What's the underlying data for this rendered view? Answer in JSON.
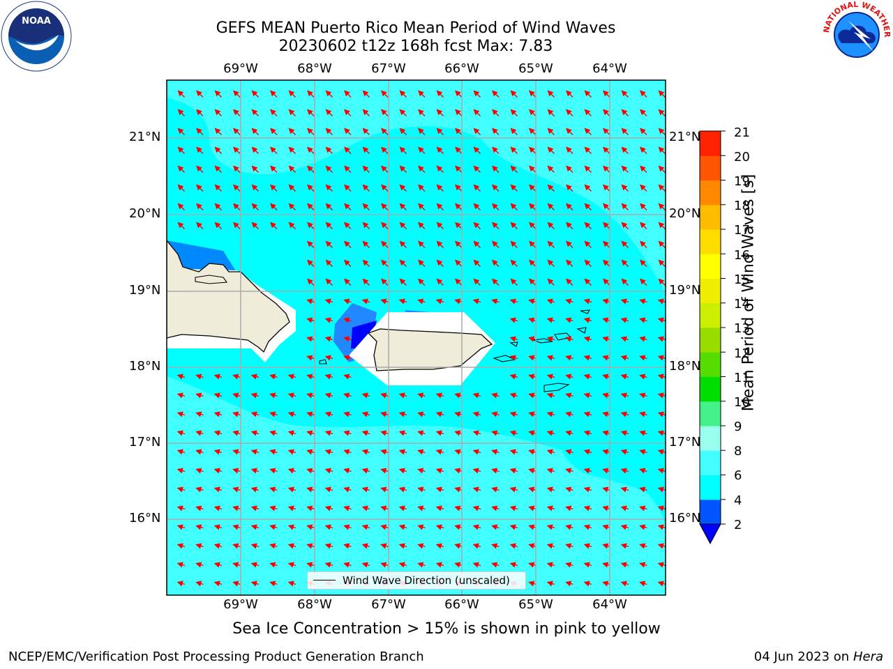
{
  "header": {
    "title_line1": "GEFS MEAN Puerto Rico Mean Period of Wind Waves",
    "title_line2": "20230602 t12z 168h fcst   Max: 7.83"
  },
  "map": {
    "lon_labels": [
      "69°W",
      "68°W",
      "67°W",
      "66°W",
      "65°W",
      "64°W"
    ],
    "lat_labels": [
      "21°N",
      "20°N",
      "19°N",
      "18°N",
      "17°N",
      "16°N"
    ],
    "ocean_color": "#00ffff",
    "land_color": "#efecd9",
    "arrow_color": "#ff0000"
  },
  "legend": {
    "label": "Wind Wave Direction (unscaled)"
  },
  "colorbar": {
    "label": "Mean Period of Wind Waves [s]",
    "ticks": [
      "2",
      "4",
      "6",
      "8",
      "9",
      "10",
      "11",
      "12",
      "13",
      "14",
      "15",
      "16",
      "17",
      "18",
      "19",
      "20",
      "21"
    ],
    "colors": [
      "#0055ff",
      "#00ffff",
      "#44ffff",
      "#99ffee",
      "#44f088",
      "#00dd00",
      "#55dd00",
      "#99dd00",
      "#ccee00",
      "#eeee00",
      "#ffff00",
      "#ffdd00",
      "#ffbb00",
      "#ff8800",
      "#ff5500",
      "#ff2200"
    ],
    "under_color": "#0000ff"
  },
  "footer": {
    "note": "Sea Ice Concentration > 15% is shown in pink to yellow",
    "credit": "NCEP/EMC/Verification Post Processing Product Generation Branch",
    "date": "04 Jun 2023 on",
    "host": "Hera"
  },
  "logos": {
    "left": "NOAA",
    "right": "NATIONAL WEATHER SERVICE"
  }
}
